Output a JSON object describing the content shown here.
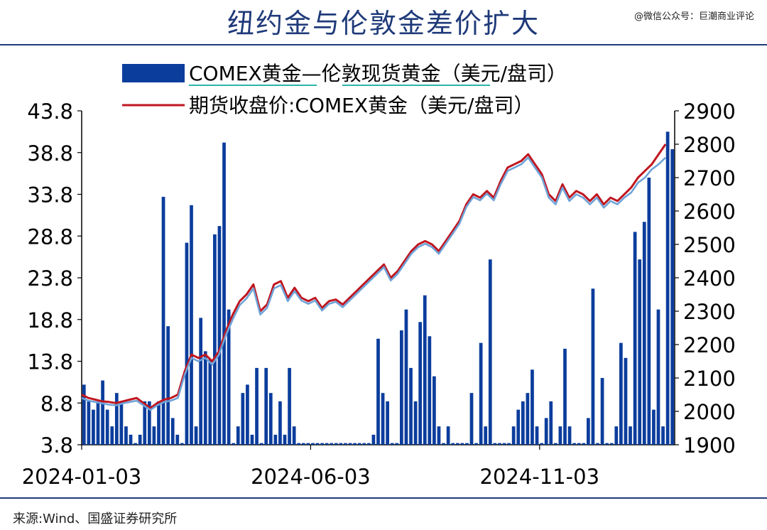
{
  "header": {
    "title": "纽约金与伦敦金差价扩大",
    "watermark": "@微信公众号：巨潮商业评论"
  },
  "source": "来源:Wind、国盛证券研究所",
  "colors": {
    "bar": "#0b3d9c",
    "futures": "#c0161f",
    "spot": "#6fa3d8",
    "axis": "#000000",
    "title": "#1f3a7a",
    "legend_underline": "#2bb5a8"
  },
  "chart_data": {
    "type": "bar+line",
    "title": "",
    "legend_placement": "top",
    "x_tick_labels": [
      "2024-01-03",
      "2024-06-03",
      "2024-11-03"
    ],
    "y_left": {
      "ticks": [
        "3.8",
        "8.8",
        "13.8",
        "18.8",
        "23.8",
        "28.8",
        "33.8",
        "38.8",
        "43.8"
      ],
      "min": 3.8,
      "max": 43.8
    },
    "y_right": {
      "ticks": [
        "1900",
        "2000",
        "2100",
        "2200",
        "2300",
        "2400",
        "2500",
        "2600",
        "2700",
        "2800",
        "2900"
      ],
      "min": 1900,
      "max": 2900
    },
    "series": [
      {
        "name": "COMEX黄金—伦敦现货黄金（美元/盘司）",
        "type": "bar",
        "axis": "left",
        "values": [
          11,
          9,
          8,
          9,
          11.5,
          8,
          6,
          10,
          9,
          6,
          5,
          4,
          5,
          9,
          9,
          6,
          9,
          33.5,
          18,
          7,
          5,
          4,
          28,
          32.5,
          6,
          19,
          15,
          14,
          29,
          30,
          40,
          20,
          4,
          6,
          10,
          11,
          5,
          13,
          4,
          13,
          10,
          5,
          9,
          5,
          13,
          6,
          4,
          4,
          4,
          4,
          4,
          4,
          4,
          4,
          4,
          4,
          4,
          4,
          4,
          4,
          4,
          4,
          5,
          16.5,
          10,
          9,
          4,
          4,
          17.5,
          20,
          13,
          9,
          18.5,
          21.7,
          16.8,
          12,
          6,
          4,
          6,
          4,
          4,
          4,
          4,
          10,
          4,
          16,
          6,
          26,
          4,
          4,
          4,
          4,
          6,
          8,
          9,
          10,
          12.8,
          6,
          4,
          7,
          9,
          4,
          6,
          15.3,
          6,
          4,
          4,
          4,
          7,
          22.5,
          4,
          11.8,
          4,
          4,
          6,
          16,
          14.2,
          6,
          29.3,
          26,
          30.5,
          35.8,
          8,
          20,
          6,
          41.3,
          39.2
        ]
      },
      {
        "name": "期货收盘价:COMEX黄金（美元/盘司）",
        "type": "line",
        "axis": "right",
        "x_months": [
          0,
          0.15,
          0.3,
          0.45,
          0.6,
          0.75,
          0.9,
          1.05,
          1.2,
          1.35,
          1.5,
          1.65,
          1.8,
          1.95,
          2.1,
          2.25,
          2.4,
          2.55,
          2.7,
          2.85,
          3.0,
          3.15,
          3.3,
          3.45,
          3.6,
          3.75,
          3.9,
          4.05,
          4.2,
          4.35,
          4.5,
          4.65,
          4.8,
          4.95,
          5.1,
          5.25,
          5.4,
          5.55,
          5.7,
          5.85,
          6.0,
          6.15,
          6.3,
          6.45,
          6.6,
          6.75,
          6.9,
          7.05,
          7.2,
          7.35,
          7.5,
          7.65,
          7.8,
          7.95,
          8.1,
          8.25,
          8.4,
          8.55,
          8.7,
          8.85,
          9.0,
          9.15,
          9.3,
          9.45,
          9.6,
          9.75,
          9.9,
          10.05,
          10.2,
          10.35,
          10.5,
          10.65,
          10.8,
          10.95,
          11.1,
          11.25,
          11.4,
          11.55,
          11.7,
          11.85,
          12.0,
          12.15,
          12.3,
          12.45,
          12.6,
          12.75
        ],
        "values": [
          2050,
          2040,
          2035,
          2030,
          2028,
          2025,
          2030,
          2035,
          2040,
          2025,
          2010,
          2025,
          2035,
          2040,
          2050,
          2120,
          2170,
          2160,
          2170,
          2150,
          2180,
          2240,
          2290,
          2330,
          2350,
          2380,
          2300,
          2320,
          2380,
          2390,
          2340,
          2370,
          2340,
          2330,
          2340,
          2310,
          2330,
          2335,
          2320,
          2340,
          2360,
          2380,
          2400,
          2420,
          2440,
          2400,
          2420,
          2450,
          2480,
          2500,
          2510,
          2500,
          2480,
          2510,
          2540,
          2570,
          2620,
          2650,
          2640,
          2660,
          2640,
          2690,
          2730,
          2740,
          2750,
          2770,
          2740,
          2710,
          2650,
          2630,
          2680,
          2640,
          2660,
          2650,
          2630,
          2650,
          2620,
          2640,
          2630,
          2650,
          2670,
          2700,
          2720,
          2740,
          2770,
          2800
        ]
      },
      {
        "name": "",
        "type": "line",
        "axis": "right",
        "x_months": [
          0,
          0.15,
          0.3,
          0.45,
          0.6,
          0.75,
          0.9,
          1.05,
          1.2,
          1.35,
          1.5,
          1.65,
          1.8,
          1.95,
          2.1,
          2.25,
          2.4,
          2.55,
          2.7,
          2.85,
          3.0,
          3.15,
          3.3,
          3.45,
          3.6,
          3.75,
          3.9,
          4.05,
          4.2,
          4.35,
          4.5,
          4.65,
          4.8,
          4.95,
          5.1,
          5.25,
          5.4,
          5.55,
          5.7,
          5.85,
          6.0,
          6.15,
          6.3,
          6.45,
          6.6,
          6.75,
          6.9,
          7.05,
          7.2,
          7.35,
          7.5,
          7.65,
          7.8,
          7.95,
          8.1,
          8.25,
          8.4,
          8.55,
          8.7,
          8.85,
          9.0,
          9.15,
          9.3,
          9.45,
          9.6,
          9.75,
          9.9,
          10.05,
          10.2,
          10.35,
          10.5,
          10.65,
          10.8,
          10.95,
          11.1,
          11.25,
          11.4,
          11.55,
          11.7,
          11.85,
          12.0,
          12.15,
          12.3,
          12.45,
          12.6,
          12.75
        ],
        "values": [
          2040,
          2032,
          2028,
          2024,
          2020,
          2018,
          2024,
          2028,
          2032,
          2018,
          2004,
          2018,
          2028,
          2032,
          2040,
          2110,
          2160,
          2150,
          2160,
          2140,
          2170,
          2228,
          2276,
          2318,
          2338,
          2368,
          2290,
          2310,
          2368,
          2378,
          2330,
          2360,
          2332,
          2322,
          2332,
          2302,
          2322,
          2328,
          2312,
          2332,
          2352,
          2372,
          2392,
          2412,
          2432,
          2392,
          2412,
          2442,
          2472,
          2492,
          2502,
          2492,
          2472,
          2502,
          2532,
          2562,
          2612,
          2642,
          2632,
          2652,
          2632,
          2680,
          2720,
          2730,
          2740,
          2760,
          2730,
          2700,
          2640,
          2620,
          2670,
          2630,
          2650,
          2640,
          2620,
          2640,
          2610,
          2630,
          2620,
          2640,
          2655,
          2685,
          2700,
          2725,
          2740,
          2760
        ]
      }
    ]
  }
}
